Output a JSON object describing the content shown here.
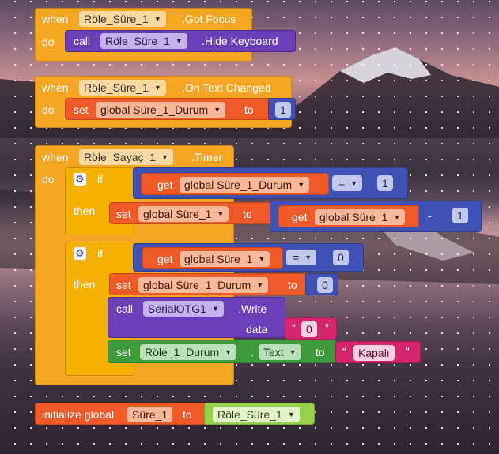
{
  "blocks": {
    "got_focus": {
      "when": "when",
      "component": "Röle_Süre_1",
      "event": ".Got Focus",
      "do": "do",
      "call": "call",
      "call_component": "Röle_Süre_1",
      "method": ".Hide Keyboard"
    },
    "text_changed": {
      "when": "when",
      "component": "Röle_Süre_1",
      "event": ".On Text Changed",
      "do": "do",
      "set": "set",
      "var": "global Süre_1_Durum",
      "to": "to",
      "value": "1"
    },
    "timer": {
      "when": "when",
      "component": "Röle_Sayaç_1",
      "event": ".Timer",
      "do": "do",
      "if1": {
        "if": "if",
        "get": "get",
        "var": "global Süre_1_Durum",
        "op": "=",
        "value": "1",
        "then": "then",
        "set": "set",
        "set_var": "global Süre_1",
        "to": "to",
        "get2": "get",
        "get2_var": "global Süre_1",
        "minus": "-",
        "minus_value": "1"
      },
      "if2": {
        "if": "if",
        "get": "get",
        "var": "global Süre_1",
        "op": "=",
        "value": "0",
        "then": "then",
        "set": "set",
        "set_var": "global Süre_1_Durum",
        "to": "to",
        "set_value": "0",
        "call": "call",
        "call_component": "SerialOTG1",
        "method": ".Write",
        "data": "data",
        "data_value": "0",
        "set2": "set",
        "prop_component": "Röle_1_Durum",
        "dot": ".",
        "prop": "Text",
        "to2": "to",
        "prop_value": "Kapalı"
      }
    },
    "init": {
      "label": "initialize global",
      "var": "Süre_1",
      "to": "to",
      "value": "Röle_Süre_1"
    }
  },
  "colors": {
    "event": "#f5a623",
    "call": "#6a3fb8",
    "variable": "#f05a28",
    "math": "#3f51b5",
    "control": "#f6b100",
    "component_set": "#3f9a3c",
    "text": "#d6256f",
    "component_ref": "#97d04a"
  }
}
